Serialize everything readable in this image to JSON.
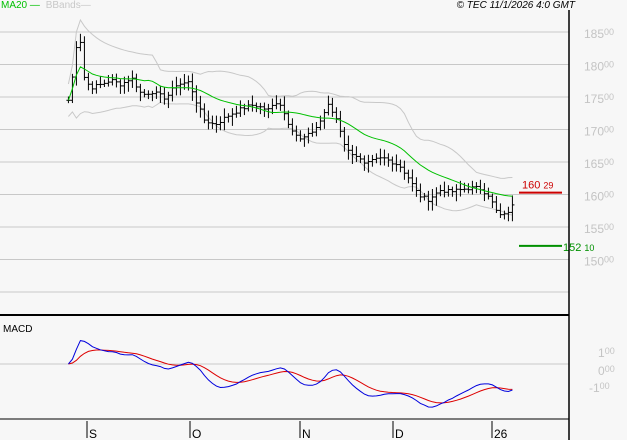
{
  "header": {
    "legend": [
      {
        "name": "MA20",
        "color": "#00c000"
      },
      {
        "name": "BBands",
        "color": "#c8c8c8"
      }
    ],
    "copyright": "© TEC 11/1/2026 4:0 GMT"
  },
  "chart_data": [
    {
      "type": "ohlc",
      "panel": "price",
      "ylim": [
        14300,
        18850
      ],
      "grid": true,
      "y_ticks": [
        {
          "int": "185",
          "dec": "00",
          "value": 18500
        },
        {
          "int": "180",
          "dec": "00",
          "value": 18000
        },
        {
          "int": "175",
          "dec": "00",
          "value": 17500
        },
        {
          "int": "170",
          "dec": "00",
          "value": 17000
        },
        {
          "int": "165",
          "dec": "00",
          "value": 16500
        },
        {
          "int": "160",
          "dec": "00",
          "value": 16000
        },
        {
          "int": "155",
          "dec": "00",
          "value": 15500
        },
        {
          "int": "150",
          "dec": "00",
          "value": 15000
        }
      ],
      "gridlines": [
        18500,
        18000,
        17500,
        17000,
        16500,
        16000,
        15500,
        15000,
        14500
      ],
      "x_ticks": [
        {
          "label": "S",
          "date": "2025-09-01"
        },
        {
          "label": "O",
          "date": "2025-10-01"
        },
        {
          "label": "N",
          "date": "2025-11-01"
        },
        {
          "label": "D",
          "date": "2025-12-01"
        },
        {
          "label": "26",
          "date": "2026-01-01"
        }
      ],
      "close": [
        [
          "2025-08-08",
          17450
        ],
        [
          "2025-08-11",
          17500
        ],
        [
          "2025-08-14",
          17920
        ],
        [
          "2025-08-17",
          18150
        ],
        [
          "2025-08-20",
          18450
        ],
        [
          "2025-08-23",
          18400
        ],
        [
          "2025-08-25",
          18220
        ],
        [
          "2025-08-26",
          17840
        ],
        [
          "2025-08-29",
          17800
        ],
        [
          "2025-09-02",
          17640
        ],
        [
          "2025-09-05",
          17690
        ],
        [
          "2025-09-08",
          17760
        ],
        [
          "2025-09-11",
          17690
        ],
        [
          "2025-09-14",
          17800
        ],
        [
          "2025-09-17",
          17530
        ],
        [
          "2025-09-20",
          17580
        ],
        [
          "2025-09-24",
          17480
        ],
        [
          "2025-09-27",
          17690
        ],
        [
          "2025-10-01",
          17730
        ],
        [
          "2025-10-02",
          17530
        ],
        [
          "2025-10-05",
          17150
        ],
        [
          "2025-10-08",
          17070
        ],
        [
          "2025-10-12",
          17220
        ],
        [
          "2025-10-16",
          17330
        ],
        [
          "2025-10-19",
          17380
        ],
        [
          "2025-10-23",
          17300
        ],
        [
          "2025-10-26",
          17450
        ],
        [
          "2025-10-29",
          17070
        ],
        [
          "2025-11-01",
          16840
        ],
        [
          "2025-11-04",
          16920
        ],
        [
          "2025-11-07",
          17070
        ],
        [
          "2025-11-10",
          17380
        ],
        [
          "2025-11-13",
          17150
        ],
        [
          "2025-11-16",
          16680
        ],
        [
          "2025-11-19",
          16610
        ],
        [
          "2025-11-22",
          16450
        ],
        [
          "2025-11-25",
          16530
        ],
        [
          "2025-11-28",
          16560
        ],
        [
          "2025-12-03",
          16450
        ],
        [
          "2025-12-06",
          16250
        ],
        [
          "2025-12-09",
          15990
        ],
        [
          "2025-12-12",
          15920
        ],
        [
          "2025-12-16",
          16070
        ],
        [
          "2025-12-19",
          16040
        ],
        [
          "2025-12-22",
          16070
        ],
        [
          "2025-12-25",
          16100
        ],
        [
          "2025-12-28",
          16100
        ],
        [
          "2025-12-31",
          15990
        ],
        [
          "2026-01-03",
          15680
        ],
        [
          "2026-01-05",
          15680
        ],
        [
          "2026-01-08",
          15840
        ]
      ],
      "series": [
        {
          "name": "MA20",
          "color": "#00c000",
          "period": 20
        },
        {
          "name": "BBands",
          "color": "#c8c8c8",
          "period": 20,
          "stdev": 2
        }
      ],
      "levels": [
        {
          "int": "160",
          "dec": "29",
          "value": 16029,
          "color": "#cc0000"
        },
        {
          "int": "152",
          "dec": "10",
          "value": 15210,
          "color": "#009000"
        }
      ]
    },
    {
      "type": "line",
      "panel": "macd",
      "title": "MACD",
      "ylim": [
        -320,
        280
      ],
      "y_ticks": [
        {
          "int": "1",
          "dec": "00",
          "value": 100
        },
        {
          "int": "0",
          "dec": "00",
          "value": 0
        },
        {
          "int": "-1",
          "dec": "00",
          "value": -100
        }
      ],
      "series": [
        {
          "role": "macd",
          "color": "#0000dd",
          "fast": 12,
          "slow": 26
        },
        {
          "role": "signal",
          "color": "#dd0000",
          "period": 9
        }
      ]
    }
  ]
}
